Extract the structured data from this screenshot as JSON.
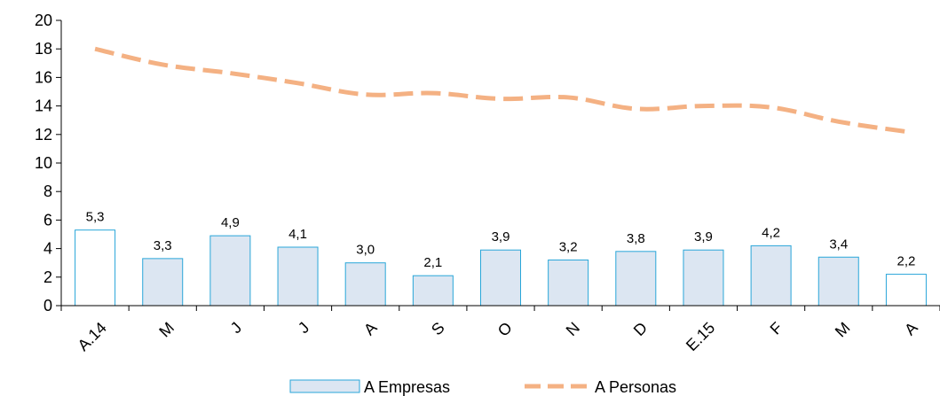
{
  "chart_data": {
    "type": "bar",
    "categories": [
      "A.14",
      "M",
      "J",
      "J",
      "A",
      "S",
      "O",
      "N",
      "D",
      "E.15",
      "F",
      "M",
      "A"
    ],
    "series": [
      {
        "name": "A Empresas",
        "type": "bar",
        "values": [
          5.3,
          3.3,
          4.9,
          4.1,
          3.0,
          2.1,
          3.9,
          3.2,
          3.8,
          3.9,
          4.2,
          3.4,
          2.2
        ],
        "labels": [
          "5,3",
          "3,3",
          "4,9",
          "4,1",
          "3,0",
          "2,1",
          "3,9",
          "3,2",
          "3,8",
          "3,9",
          "4,2",
          "3,4",
          "2,2"
        ],
        "highlighted": [
          true,
          false,
          false,
          false,
          false,
          false,
          false,
          false,
          false,
          false,
          false,
          false,
          true
        ]
      },
      {
        "name": "A Personas",
        "type": "line",
        "style": "dashed",
        "values": [
          18.0,
          16.9,
          16.3,
          15.6,
          14.8,
          14.9,
          14.5,
          14.6,
          13.8,
          14.0,
          13.9,
          12.9,
          12.2
        ]
      }
    ],
    "ylim": [
      0,
      20
    ],
    "yticks": [
      0,
      2,
      4,
      6,
      8,
      10,
      12,
      14,
      16,
      18,
      20
    ],
    "title": "",
    "xlabel": "",
    "ylabel": "",
    "grid": false,
    "legend_position": "bottom-center",
    "colors": {
      "bar_fill": "#dce6f2",
      "bar_fill_highlight": "#ffffff",
      "bar_stroke": "#29a6d9",
      "line": "#f4b183",
      "axis": "#000000"
    }
  }
}
